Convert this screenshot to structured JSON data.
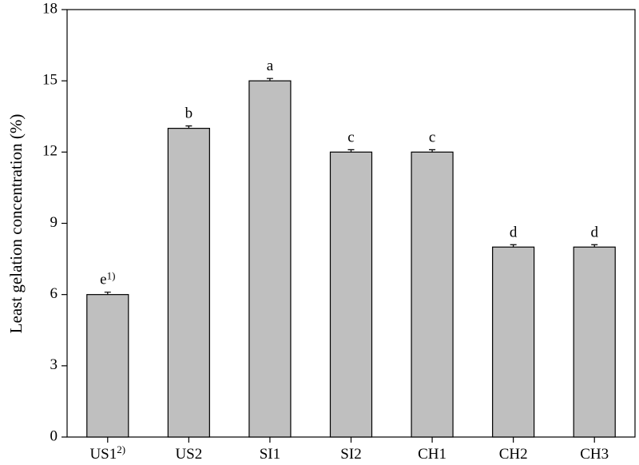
{
  "chart_data": {
    "type": "bar",
    "y_label": "Least gelation concentration (%)",
    "categories": [
      "US1",
      "US2",
      "SI1",
      "SI2",
      "CH1",
      "CH2",
      "CH3"
    ],
    "category_notes": [
      "2)",
      null,
      null,
      null,
      null,
      null,
      null
    ],
    "values": [
      6,
      13,
      15,
      12,
      12,
      8,
      8
    ],
    "errors": [
      0.1,
      0.1,
      0.1,
      0.1,
      0.1,
      0.1,
      0.1
    ],
    "letters": [
      "e",
      "b",
      "a",
      "c",
      "c",
      "d",
      "d"
    ],
    "letter_notes": [
      "1)",
      null,
      null,
      null,
      null,
      null,
      null
    ],
    "color": "#bfbfbf",
    "ylim": [
      0,
      18
    ],
    "yticks": [
      0,
      3,
      6,
      9,
      12,
      15,
      18
    ]
  }
}
